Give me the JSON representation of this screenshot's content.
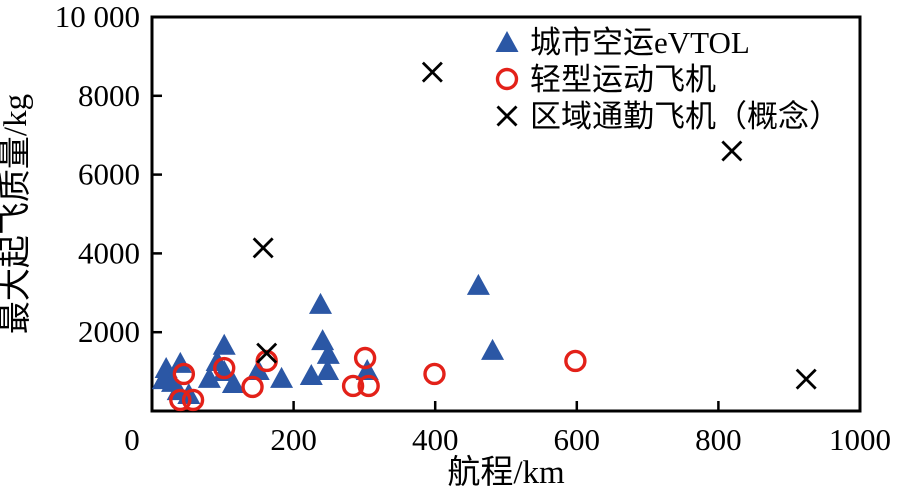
{
  "chart_data": {
    "type": "scatter",
    "title": "",
    "xlabel": "航程/km",
    "ylabel": "最大起飞质量/kg",
    "xlim": [
      0,
      1000
    ],
    "ylim": [
      0,
      10000
    ],
    "x_ticks": [
      0,
      200,
      400,
      600,
      800,
      1000
    ],
    "x_tick_labels": [
      "0",
      "200",
      "400",
      "600",
      "800",
      "1000"
    ],
    "y_ticks": [
      2000,
      4000,
      6000,
      8000,
      10000
    ],
    "y_tick_labels": [
      "2000",
      "4000",
      "6000",
      "8000",
      "10 000"
    ],
    "grid": false,
    "frame": "full-box",
    "tick_direction": "in",
    "legend_position": "inside-top-right",
    "series": [
      {
        "name": "城市空运eVTOL",
        "marker": "triangle",
        "color": "#2b57a5",
        "points": [
          [
            20,
            1090
          ],
          [
            40,
            1220
          ],
          [
            16,
            810
          ],
          [
            29,
            740
          ],
          [
            37,
            530
          ],
          [
            52,
            430
          ],
          [
            81,
            840
          ],
          [
            92,
            1270
          ],
          [
            102,
            1680
          ],
          [
            102,
            1015
          ],
          [
            115,
            710
          ],
          [
            150,
            1040
          ],
          [
            183,
            840
          ],
          [
            225,
            915
          ],
          [
            238,
            2720
          ],
          [
            241,
            1800
          ],
          [
            249,
            1450
          ],
          [
            248,
            1040
          ],
          [
            304,
            1040
          ],
          [
            461,
            3200
          ],
          [
            481,
            1550
          ]
        ]
      },
      {
        "name": "轻型运动飞机",
        "marker": "open-circle",
        "color": "#e32119",
        "points": [
          [
            45,
            940
          ],
          [
            40,
            280
          ],
          [
            58,
            280
          ],
          [
            102,
            1090
          ],
          [
            142,
            610
          ],
          [
            162,
            1270
          ],
          [
            284,
            635
          ],
          [
            306,
            635
          ],
          [
            301,
            1345
          ],
          [
            399,
            940
          ],
          [
            598,
            1270
          ]
        ]
      },
      {
        "name": "区域通勤飞机（概念）",
        "marker": "x-cross",
        "color": "#000000",
        "points": [
          [
            157,
            4140
          ],
          [
            162,
            1470
          ],
          [
            396,
            8600
          ],
          [
            819,
            6600
          ],
          [
            924,
            810
          ]
        ]
      }
    ]
  },
  "axis_style": {
    "line_color": "#000000",
    "tick_label_size": 31,
    "axis_label_size": 33,
    "legend_text_size": 31
  }
}
